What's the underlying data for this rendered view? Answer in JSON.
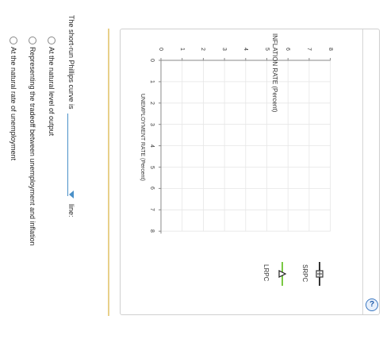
{
  "graph": {
    "title": "INFLATION RATE (Percent)",
    "xlabel": "UNEMPLOYMENT RATE (Percent)",
    "x_ticks": [
      "0",
      "1",
      "2",
      "3",
      "4",
      "5",
      "6",
      "7",
      "8"
    ],
    "y_ticks": [
      "0",
      "1",
      "2",
      "3",
      "4",
      "5",
      "6",
      "7",
      "8"
    ],
    "legend": {
      "srpc_label": "SRPC",
      "lrpc_label": "LRPC",
      "srpc_color": "#333333",
      "lrpc_color": "#7ac943"
    },
    "help_label": "?"
  },
  "question": {
    "prompt": "The short-run Phillips curve is",
    "suffix": "line:",
    "options": [
      "At the natural level of output",
      "Representing the tradeoff between unemployment and inflation",
      "At the natural rate of unemployment"
    ]
  },
  "chart_data": {
    "type": "line",
    "title": "",
    "xlabel": "UNEMPLOYMENT RATE (Percent)",
    "ylabel": "INFLATION RATE (Percent)",
    "xlim": [
      0,
      8
    ],
    "ylim": [
      0,
      8
    ],
    "grid": true,
    "series": []
  }
}
